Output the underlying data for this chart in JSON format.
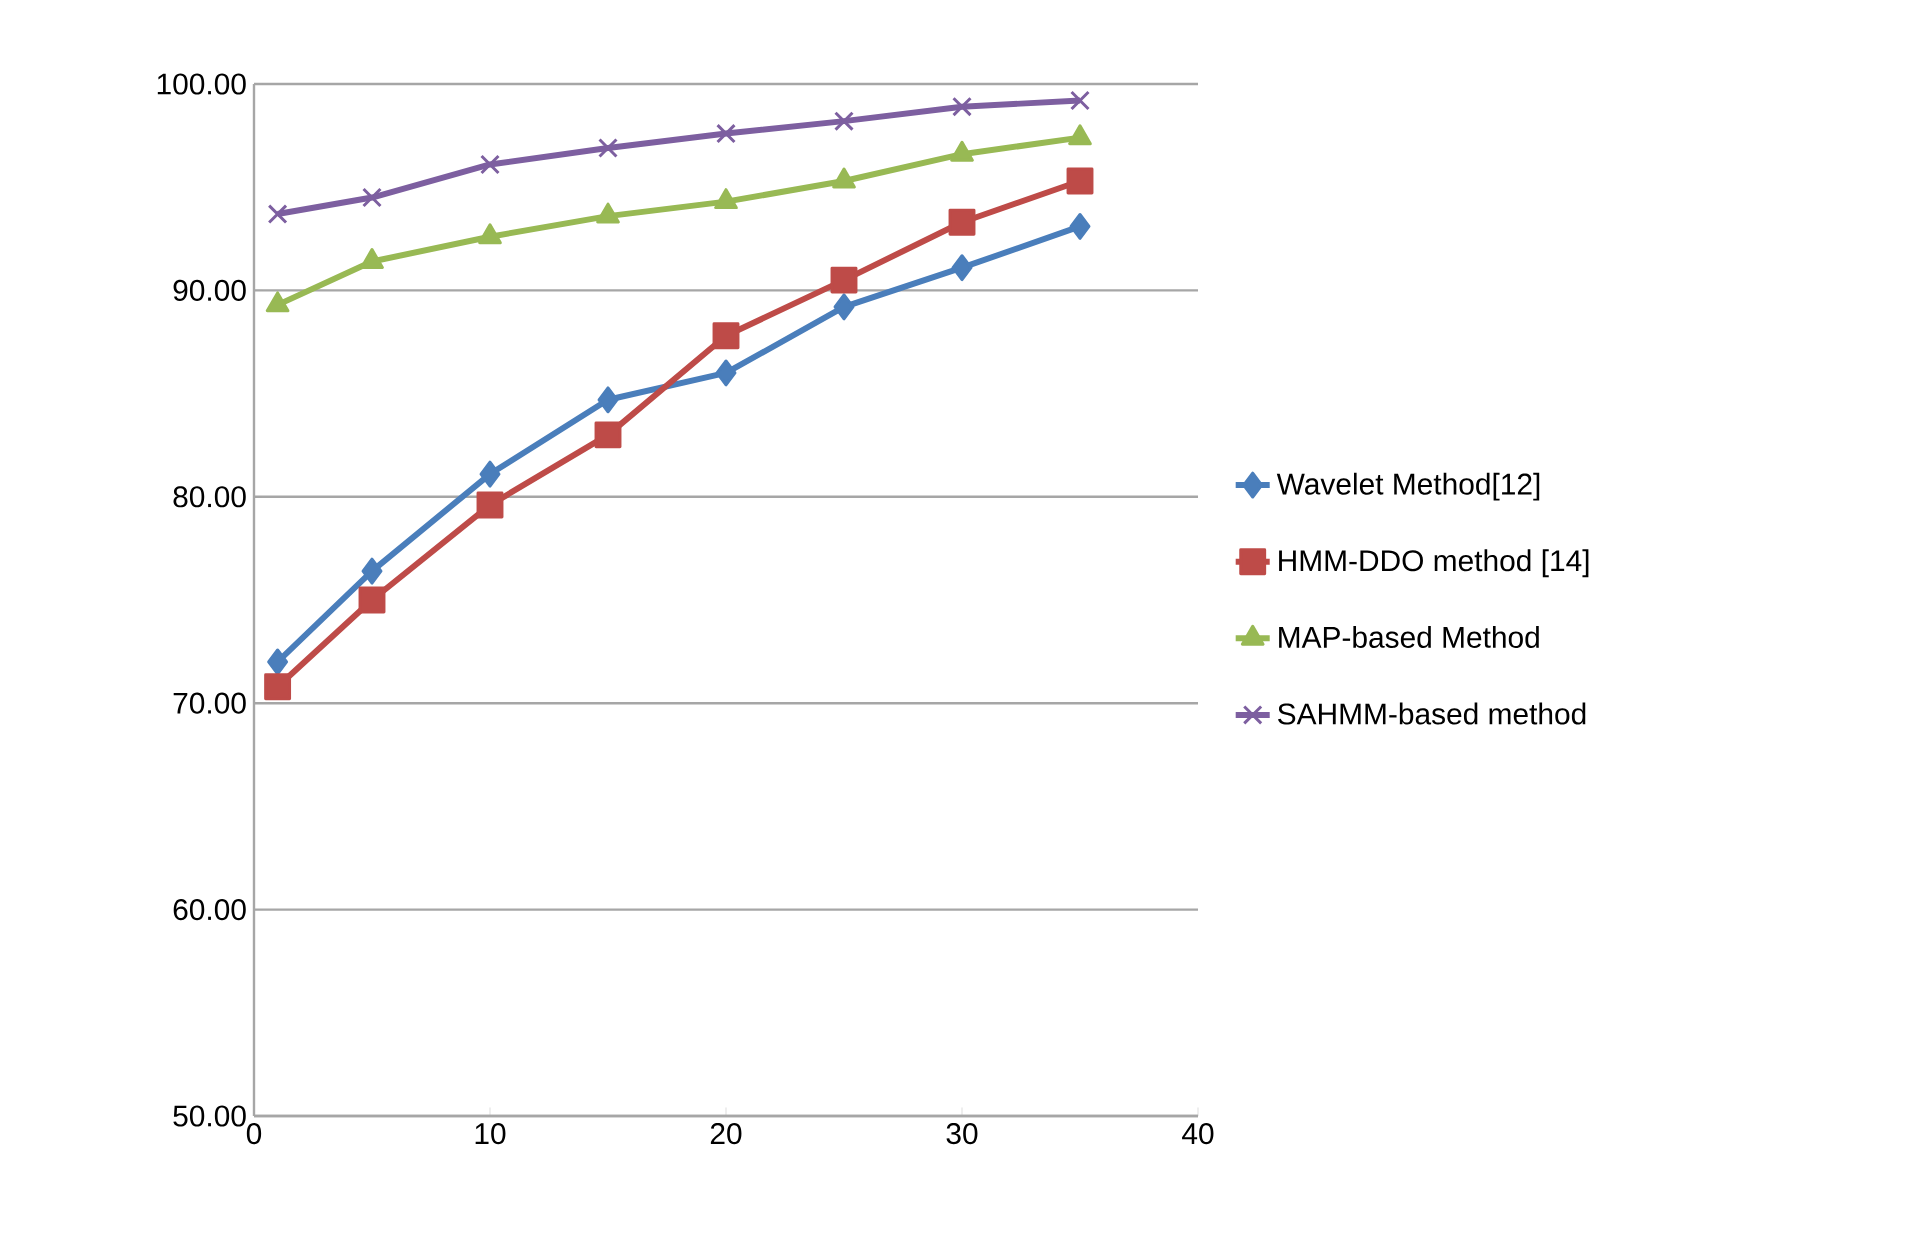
{
  "chart_data": {
    "type": "line",
    "x": [
      1,
      5,
      10,
      15,
      20,
      25,
      30,
      35
    ],
    "series": [
      {
        "name": "Wavelet Method[12]",
        "color": "#4a7ebb",
        "marker": "diamond",
        "values": [
          72.0,
          76.4,
          81.1,
          84.7,
          86.0,
          89.2,
          91.1,
          93.1
        ]
      },
      {
        "name": "HMM-DDO method [14]",
        "color": "#be4b48",
        "marker": "square",
        "values": [
          70.8,
          75.0,
          79.6,
          83.0,
          87.8,
          90.5,
          93.3,
          95.3
        ]
      },
      {
        "name": "MAP-based Method",
        "color": "#98b954",
        "marker": "triangle",
        "values": [
          89.3,
          91.4,
          92.6,
          93.6,
          94.3,
          95.3,
          96.6,
          97.4
        ]
      },
      {
        "name": "SAHMM-based method",
        "color": "#7d5fa0",
        "marker": "cross",
        "values": [
          93.7,
          94.5,
          96.1,
          96.9,
          97.6,
          98.2,
          98.9,
          99.2
        ]
      }
    ],
    "xlim": [
      0,
      40
    ],
    "xticks": [
      0,
      10,
      20,
      30,
      40
    ],
    "ylim": [
      50,
      100
    ],
    "yticks": [
      {
        "value": 50,
        "label": "50.00"
      },
      {
        "value": 60,
        "label": "60.00"
      },
      {
        "value": 70,
        "label": "70.00"
      },
      {
        "value": 80,
        "label": "80.00"
      },
      {
        "value": 90,
        "label": "90.00"
      },
      {
        "value": 100,
        "label": "100.00"
      }
    ],
    "grid": "y",
    "legend": "right",
    "line_style": "solid"
  }
}
